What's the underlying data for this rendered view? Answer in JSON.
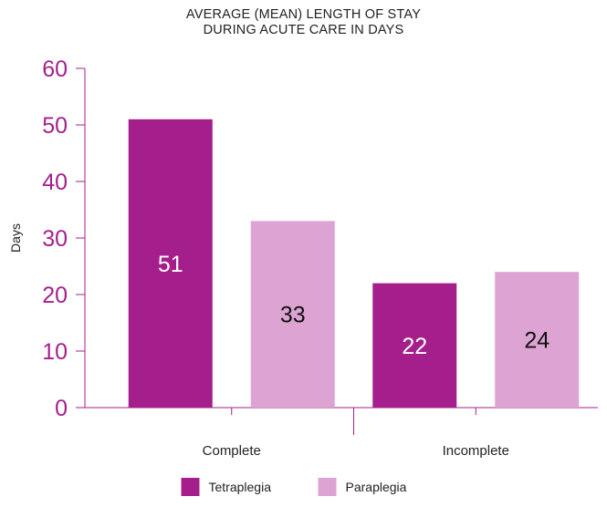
{
  "chart_data": {
    "type": "bar",
    "title_lines": [
      "AVERAGE (MEAN) LENGTH OF STAY",
      "DURING ACUTE CARE IN DAYS"
    ],
    "ylabel": "Days",
    "xlabel": "",
    "ylim": [
      0,
      60
    ],
    "yticks": [
      0,
      10,
      20,
      30,
      40,
      50,
      60
    ],
    "categories": [
      "Complete",
      "Incomplete"
    ],
    "series": [
      {
        "name": "Tetraplegia",
        "values": [
          51,
          22
        ],
        "color": "#a51f8c",
        "label_color": "#ffffff"
      },
      {
        "name": "Paraplegia",
        "values": [
          33,
          24
        ],
        "color": "#dda3d3",
        "label_color": "#111111"
      }
    ],
    "grid": false,
    "legend_position": "bottom-center"
  }
}
